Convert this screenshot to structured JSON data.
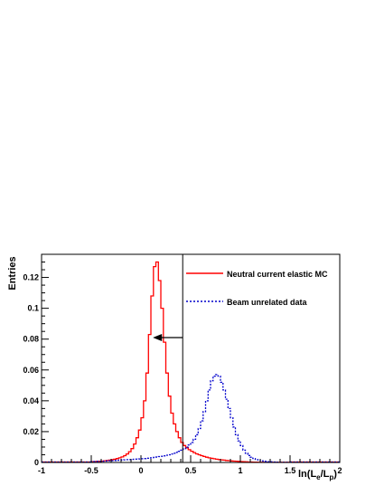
{
  "chart_data": {
    "type": "line",
    "title": "",
    "xlabel": "ln(L_e/L_p)",
    "ylabel": "Entries",
    "xlim": [
      -1,
      2
    ],
    "ylim": [
      0,
      0.135
    ],
    "grid": false,
    "legend": "top-right",
    "x_ticks": [
      {
        "value": -1,
        "label": "-1"
      },
      {
        "value": -0.5,
        "label": "-0.5"
      },
      {
        "value": 0,
        "label": "0"
      },
      {
        "value": 0.5,
        "label": "0.5"
      },
      {
        "value": 1,
        "label": "1"
      },
      {
        "value": 1.5,
        "label": "1.5"
      },
      {
        "value": 2,
        "label": "2"
      }
    ],
    "y_ticks": [
      {
        "value": 0,
        "label": "0"
      },
      {
        "value": 0.02,
        "label": "0.02"
      },
      {
        "value": 0.04,
        "label": "0.04"
      },
      {
        "value": 0.06,
        "label": "0.06"
      },
      {
        "value": 0.08,
        "label": "0.08"
      },
      {
        "value": 0.1,
        "label": "0.1"
      },
      {
        "value": 0.12,
        "label": "0.12"
      }
    ],
    "cut_value": 0.42,
    "cut_arrow": {
      "from_x": 0.42,
      "to_x": 0.12,
      "y": 0.081
    },
    "series": [
      {
        "name": "Neutral current elastic MC",
        "color": "#ff0000",
        "style": "solid",
        "bin_width": 0.025,
        "bin_edges_start": -0.5,
        "values": [
          0.0005,
          0.0006,
          0.0007,
          0.0008,
          0.0009,
          0.0011,
          0.0013,
          0.0015,
          0.0018,
          0.0021,
          0.0025,
          0.003,
          0.0036,
          0.0044,
          0.0055,
          0.007,
          0.009,
          0.012,
          0.016,
          0.021,
          0.029,
          0.04,
          0.058,
          0.083,
          0.108,
          0.127,
          0.13,
          0.118,
          0.1,
          0.078,
          0.058,
          0.043,
          0.032,
          0.025,
          0.02,
          0.016,
          0.013,
          0.011,
          0.0095,
          0.0083,
          0.0073,
          0.0064,
          0.0056,
          0.005,
          0.0044,
          0.0039,
          0.0034,
          0.003,
          0.0027,
          0.0024,
          0.0021,
          0.0019,
          0.0017,
          0.0015,
          0.0013,
          0.0012,
          0.001,
          0.0009,
          0.0008,
          0.0007,
          0.0006,
          0.0005,
          0.0004,
          0.0003,
          0.0003,
          0.0002,
          0.0002,
          0.0001,
          0.0001,
          0.0001,
          0.0001,
          0.0001,
          0.0001,
          0.0001,
          0.0001,
          0.0001,
          0.0001,
          0.0001,
          0.0001,
          0.0001
        ]
      },
      {
        "name": "Beam unrelated data",
        "color": "#0000cc",
        "style": "dotted",
        "bin_width": 0.025,
        "bin_edges_start": -0.5,
        "values": [
          0.0005,
          0.0006,
          0.0007,
          0.0007,
          0.0008,
          0.0009,
          0.001,
          0.0011,
          0.0012,
          0.0013,
          0.0014,
          0.0015,
          0.0016,
          0.0017,
          0.0018,
          0.0019,
          0.002,
          0.0021,
          0.0022,
          0.0023,
          0.0024,
          0.0025,
          0.0027,
          0.0029,
          0.0031,
          0.0033,
          0.0035,
          0.0038,
          0.004,
          0.0043,
          0.0047,
          0.005,
          0.0055,
          0.006,
          0.0066,
          0.0072,
          0.008,
          0.009,
          0.01,
          0.0113,
          0.013,
          0.015,
          0.018,
          0.022,
          0.027,
          0.033,
          0.04,
          0.047,
          0.053,
          0.056,
          0.057,
          0.056,
          0.052,
          0.047,
          0.041,
          0.035,
          0.029,
          0.023,
          0.018,
          0.014,
          0.011,
          0.008,
          0.006,
          0.0045,
          0.0034,
          0.0026,
          0.002,
          0.0015,
          0.0012,
          0.0009,
          0.0007,
          0.0005,
          0.0004,
          0.0003,
          0.0002,
          0.0002,
          0.0001,
          0.0001,
          0.0001,
          0.0001
        ]
      }
    ],
    "legend_entries": [
      {
        "label": "Neutral current elastic MC",
        "color": "#ff0000",
        "style": "solid"
      },
      {
        "label": "Beam unrelated data",
        "color": "#0000cc",
        "style": "dotted"
      }
    ]
  }
}
